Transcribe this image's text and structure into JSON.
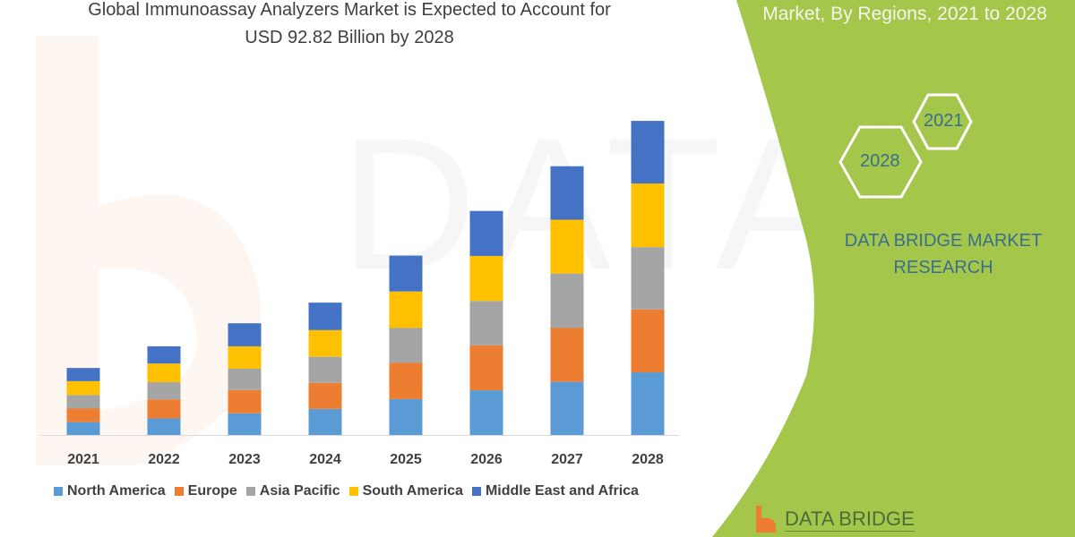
{
  "title": [
    "Global Immunoassay Analyzers Market is Expected to Account for",
    "USD 92.82 Billion by 2028"
  ],
  "side_panel": {
    "subtitle": "Market, By Regions, 2021 to 2028",
    "hex_years": [
      "2021",
      "2028"
    ],
    "brand": [
      "DATA BRIDGE MARKET",
      "RESEARCH"
    ],
    "logo_text": "DATA BRIDGE",
    "green": "#a4c64a"
  },
  "chart_data": {
    "type": "bar",
    "stacked": true,
    "title": "",
    "xlabel": "",
    "ylabel": "",
    "y_axis_shown": false,
    "grid": false,
    "legend_position": "bottom",
    "categories": [
      "2021",
      "2022",
      "2023",
      "2024",
      "2025",
      "2026",
      "2027",
      "2028"
    ],
    "series": [
      {
        "name": "North America",
        "color": "#5b9bd5",
        "values": [
          3.8,
          4.9,
          6.4,
          7.7,
          10.6,
          13.2,
          15.7,
          18.5
        ]
      },
      {
        "name": "Europe",
        "color": "#ed7d31",
        "values": [
          4.0,
          5.6,
          6.9,
          7.7,
          10.7,
          13.3,
          15.9,
          18.6
        ]
      },
      {
        "name": "Asia Pacific",
        "color": "#a5a5a5",
        "values": [
          4.0,
          5.1,
          6.3,
          7.7,
          10.3,
          13.1,
          16.1,
          18.4
        ]
      },
      {
        "name": "South America",
        "color": "#ffc000",
        "values": [
          4.1,
          5.5,
          6.6,
          7.9,
          10.8,
          13.3,
          15.9,
          18.8
        ]
      },
      {
        "name": "Middle East and Africa",
        "color": "#4472c4",
        "values": [
          3.9,
          5.1,
          6.8,
          8.1,
          10.6,
          13.3,
          15.8,
          18.5
        ]
      }
    ]
  }
}
